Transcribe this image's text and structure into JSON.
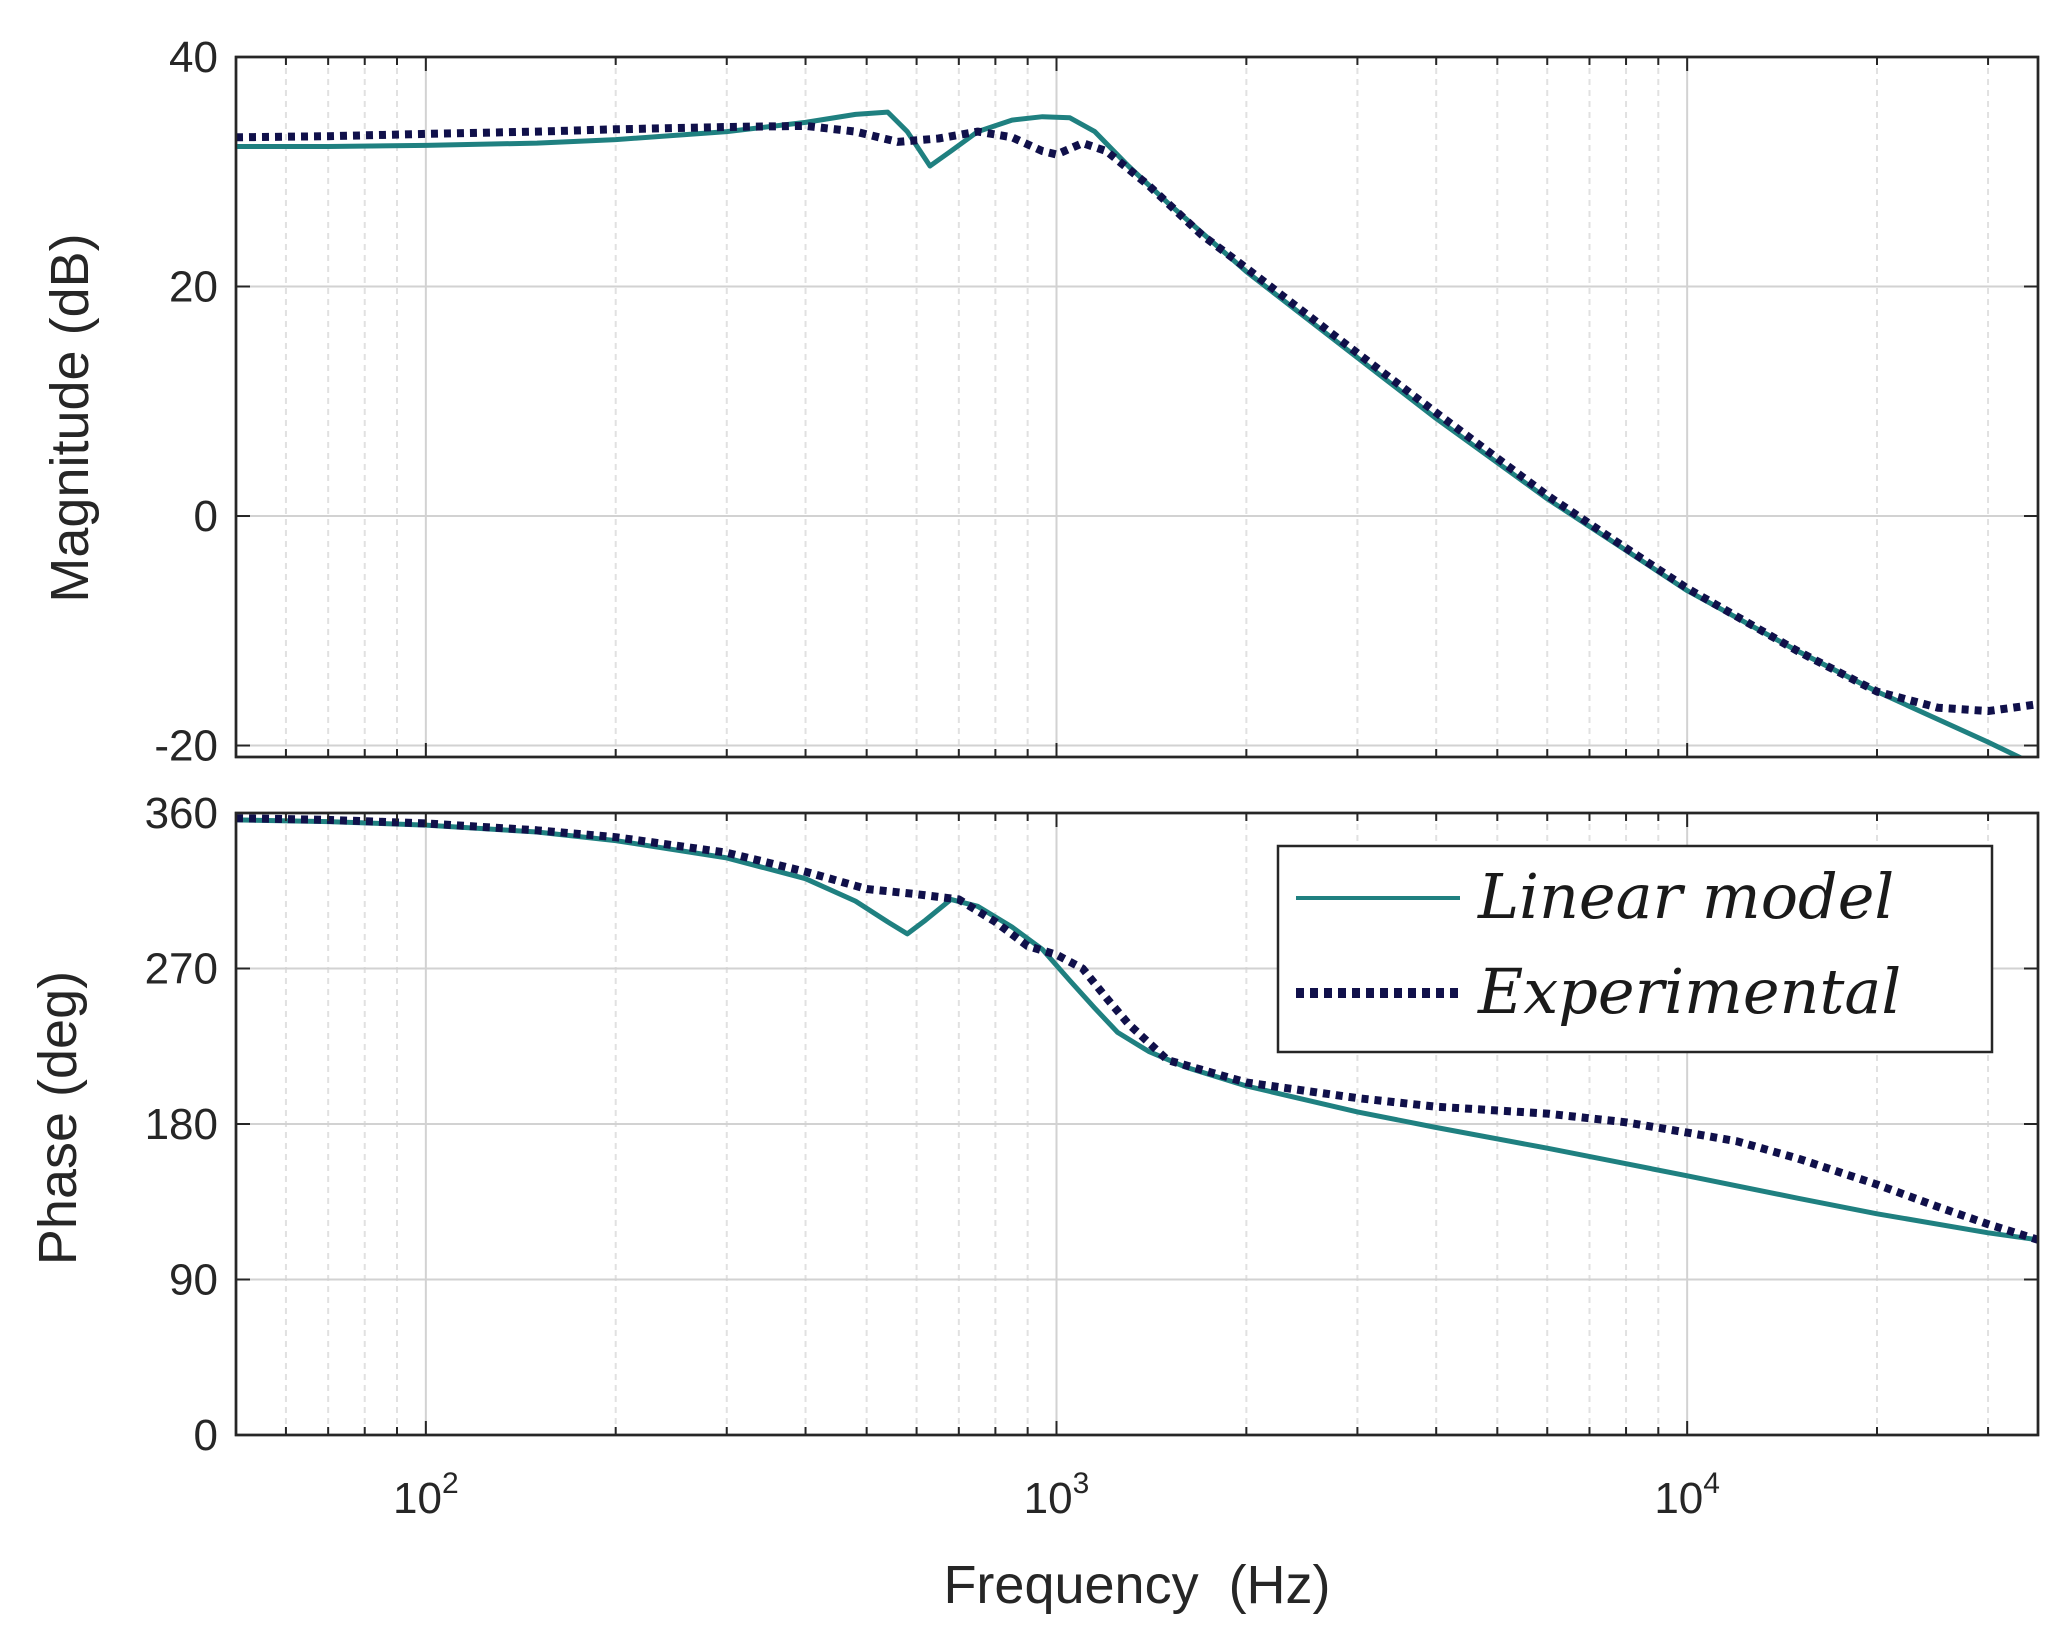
{
  "chart_data": [
    {
      "type": "line",
      "panel": "magnitude",
      "xscale": "log",
      "xlim": [
        50,
        36000
      ],
      "ylim": [
        -21,
        40
      ],
      "ylabel": "Magnitude (dB)",
      "xlabel": "",
      "yticks": [
        40,
        20,
        0,
        -20
      ],
      "ytick_labels": [
        "40",
        "20",
        "0",
        "-20"
      ],
      "grid": true,
      "series": [
        {
          "name": "Linear model",
          "color": "#1f8080",
          "style": "solid",
          "x": [
            50,
            70,
            100,
            150,
            200,
            300,
            400,
            480,
            540,
            580,
            630,
            680,
            750,
            850,
            950,
            1050,
            1150,
            1300,
            1500,
            2000,
            3000,
            4000,
            6000,
            8000,
            10000,
            15000,
            20000,
            30000,
            36000
          ],
          "y": [
            32.2,
            32.2,
            32.3,
            32.5,
            32.8,
            33.5,
            34.3,
            35.0,
            35.2,
            33.5,
            30.5,
            31.8,
            33.5,
            34.5,
            34.8,
            34.7,
            33.5,
            30.5,
            27.3,
            21.3,
            13.8,
            8.5,
            1.5,
            -3.0,
            -6.5,
            -11.8,
            -15.3,
            -19.7,
            -21.8
          ]
        },
        {
          "name": "Experimental",
          "color": "#10104a",
          "style": "dotted",
          "x": [
            50,
            70,
            100,
            150,
            200,
            300,
            400,
            480,
            560,
            650,
            750,
            850,
            950,
            1000,
            1100,
            1200,
            1400,
            1700,
            2000,
            3000,
            4000,
            6000,
            8000,
            10000,
            15000,
            20000,
            25000,
            30000,
            36000
          ],
          "y": [
            33.0,
            33.1,
            33.3,
            33.5,
            33.7,
            33.9,
            34.0,
            33.5,
            32.6,
            32.9,
            33.5,
            33.0,
            31.8,
            31.5,
            32.5,
            31.8,
            28.8,
            24.5,
            21.6,
            14.2,
            9.0,
            1.8,
            -2.8,
            -6.3,
            -11.8,
            -15.3,
            -16.7,
            -17.0,
            -16.4
          ]
        }
      ]
    },
    {
      "type": "line",
      "panel": "phase",
      "xscale": "log",
      "xlim": [
        50,
        36000
      ],
      "ylim": [
        0,
        360
      ],
      "ylabel": "Phase (deg)",
      "xlabel": "Frequency  (Hz)",
      "yticks": [
        360,
        270,
        180,
        90,
        0
      ],
      "ytick_labels": [
        "360",
        "270",
        "180",
        "90",
        "0"
      ],
      "xticks": [
        100,
        1000,
        10000
      ],
      "xtick_bases": [
        "10",
        "10",
        "10"
      ],
      "xtick_exponents": [
        "2",
        "3",
        "4"
      ],
      "grid": true,
      "legend": {
        "location": "top-right",
        "entries": [
          "Linear model",
          "Experimental"
        ]
      },
      "series": [
        {
          "name": "Linear model",
          "color": "#1f8080",
          "style": "solid",
          "x": [
            50,
            70,
            100,
            150,
            200,
            300,
            400,
            480,
            540,
            580,
            620,
            680,
            750,
            850,
            950,
            1050,
            1150,
            1250,
            1400,
            1600,
            2000,
            3000,
            4000,
            6000,
            8000,
            10000,
            15000,
            20000,
            30000,
            36000
          ],
          "y": [
            356,
            355,
            353,
            349,
            344,
            334,
            322,
            309,
            297,
            290,
            298,
            310,
            306,
            294,
            281,
            263,
            247,
            233,
            222,
            213,
            202,
            187,
            178,
            166,
            157,
            150,
            137,
            128,
            117,
            113
          ],
          "points": []
        },
        {
          "name": "Experimental",
          "color": "#10104a",
          "style": "dotted",
          "x": [
            50,
            70,
            100,
            150,
            200,
            300,
            400,
            500,
            600,
            700,
            800,
            900,
            1000,
            1100,
            1200,
            1300,
            1500,
            2000,
            3000,
            4000,
            6000,
            8000,
            10000,
            12000,
            15000,
            20000,
            25000,
            30000,
            36000
          ],
          "y": [
            357,
            356,
            354,
            350,
            346,
            337,
            326,
            316,
            313,
            310,
            297,
            283,
            278,
            270,
            253,
            238,
            217,
            204,
            195,
            190,
            186,
            181,
            175,
            170,
            160,
            145,
            132,
            122,
            113
          ]
        }
      ]
    }
  ]
}
